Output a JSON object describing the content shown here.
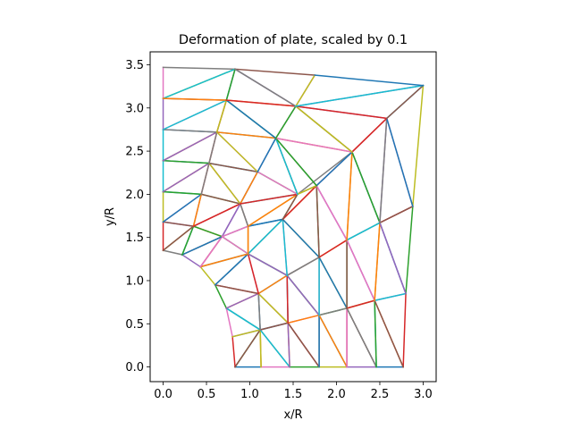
{
  "chart_data": {
    "type": "line",
    "title": "Deformation of plate, scaled by 0.1",
    "xlabel": "x/R",
    "ylabel": "y/R",
    "xlim": [
      -0.15,
      3.15
    ],
    "ylim": [
      -0.17,
      3.65
    ],
    "xticks": [
      0.0,
      0.5,
      1.0,
      1.5,
      2.0,
      2.5,
      3.0
    ],
    "xtick_labels": [
      "0.0",
      "0.5",
      "1.0",
      "1.5",
      "2.0",
      "2.5",
      "3.0"
    ],
    "yticks": [
      0.0,
      0.5,
      1.0,
      1.5,
      2.0,
      2.5,
      3.0,
      3.5
    ],
    "ytick_labels": [
      "0.0",
      "0.5",
      "1.0",
      "1.5",
      "2.0",
      "2.5",
      "3.0",
      "3.5"
    ],
    "grid": false,
    "colors": [
      "#1f77b4",
      "#ff7f0e",
      "#2ca02c",
      "#d62728",
      "#9467bd",
      "#8c564b",
      "#e377c2",
      "#7f7f7f",
      "#bcbd22",
      "#17becf"
    ],
    "nodes": [
      [
        0.83,
        0.0
      ],
      [
        1.13,
        0.0
      ],
      [
        1.46,
        0.0
      ],
      [
        1.8,
        0.0
      ],
      [
        2.12,
        0.0
      ],
      [
        2.46,
        0.0
      ],
      [
        2.77,
        0.0
      ],
      [
        0.8,
        0.35
      ],
      [
        0.73,
        0.68
      ],
      [
        0.6,
        0.95
      ],
      [
        0.43,
        1.16
      ],
      [
        0.22,
        1.3
      ],
      [
        0.0,
        1.35
      ],
      [
        0.0,
        1.68
      ],
      [
        0.0,
        2.03
      ],
      [
        0.0,
        2.39
      ],
      [
        0.0,
        2.75
      ],
      [
        0.0,
        3.11
      ],
      [
        0.0,
        3.47
      ],
      [
        0.83,
        3.45
      ],
      [
        1.75,
        3.38
      ],
      [
        3.0,
        3.26
      ],
      [
        2.88,
        1.86
      ],
      [
        2.8,
        0.85
      ],
      [
        1.12,
        0.43
      ],
      [
        1.44,
        0.51
      ],
      [
        1.8,
        0.6
      ],
      [
        2.12,
        0.68
      ],
      [
        2.44,
        0.77
      ],
      [
        1.1,
        0.85
      ],
      [
        1.43,
        1.06
      ],
      [
        1.8,
        1.27
      ],
      [
        2.12,
        1.47
      ],
      [
        2.5,
        1.67
      ],
      [
        0.98,
        1.31
      ],
      [
        1.38,
        1.71
      ],
      [
        1.77,
        2.1
      ],
      [
        2.18,
        2.49
      ],
      [
        2.58,
        2.88
      ],
      [
        0.68,
        1.51
      ],
      [
        0.35,
        1.63
      ],
      [
        0.44,
        2.0
      ],
      [
        0.89,
        1.89
      ],
      [
        0.53,
        2.36
      ],
      [
        1.09,
        2.26
      ],
      [
        0.62,
        2.72
      ],
      [
        1.3,
        2.65
      ],
      [
        0.73,
        3.09
      ],
      [
        1.53,
        3.02
      ],
      [
        0.98,
        1.63
      ],
      [
        1.55,
        2.0
      ]
    ],
    "elements": [
      [
        0,
        1,
        24
      ],
      [
        0,
        7,
        24
      ],
      [
        1,
        2,
        24
      ],
      [
        2,
        24,
        25
      ],
      [
        2,
        3,
        25
      ],
      [
        3,
        25,
        26
      ],
      [
        3,
        4,
        26
      ],
      [
        4,
        26,
        27
      ],
      [
        4,
        5,
        27
      ],
      [
        5,
        27,
        28
      ],
      [
        5,
        6,
        28
      ],
      [
        6,
        23,
        28
      ],
      [
        7,
        8,
        24
      ],
      [
        8,
        24,
        29
      ],
      [
        8,
        9,
        29
      ],
      [
        24,
        25,
        29
      ],
      [
        25,
        29,
        30
      ],
      [
        25,
        26,
        30
      ],
      [
        26,
        30,
        31
      ],
      [
        26,
        27,
        31
      ],
      [
        27,
        31,
        32
      ],
      [
        27,
        28,
        32
      ],
      [
        28,
        32,
        33
      ],
      [
        28,
        23,
        33
      ],
      [
        23,
        22,
        33
      ],
      [
        9,
        29,
        34
      ],
      [
        9,
        10,
        34
      ],
      [
        29,
        30,
        34
      ],
      [
        30,
        34,
        35
      ],
      [
        30,
        31,
        35
      ],
      [
        31,
        35,
        36
      ],
      [
        31,
        32,
        36
      ],
      [
        32,
        36,
        37
      ],
      [
        32,
        33,
        37
      ],
      [
        33,
        37,
        38
      ],
      [
        33,
        22,
        38
      ],
      [
        22,
        21,
        38
      ],
      [
        10,
        34,
        39
      ],
      [
        10,
        11,
        39
      ],
      [
        11,
        12,
        40
      ],
      [
        11,
        39,
        40
      ],
      [
        12,
        13,
        40
      ],
      [
        34,
        39,
        49
      ],
      [
        34,
        35,
        49
      ],
      [
        39,
        40,
        42
      ],
      [
        40,
        13,
        41
      ],
      [
        13,
        14,
        41
      ],
      [
        40,
        41,
        42
      ],
      [
        39,
        42,
        49
      ],
      [
        42,
        49,
        50
      ],
      [
        35,
        49,
        50
      ],
      [
        35,
        36,
        50
      ],
      [
        36,
        37,
        50
      ],
      [
        14,
        15,
        43
      ],
      [
        14,
        41,
        43
      ],
      [
        41,
        42,
        43
      ],
      [
        42,
        43,
        44
      ],
      [
        42,
        44,
        50
      ],
      [
        44,
        46,
        50
      ],
      [
        46,
        36,
        50
      ],
      [
        36,
        37,
        46
      ],
      [
        37,
        38,
        48
      ],
      [
        37,
        46,
        48
      ],
      [
        15,
        16,
        45
      ],
      [
        15,
        43,
        45
      ],
      [
        43,
        44,
        45
      ],
      [
        44,
        45,
        46
      ],
      [
        45,
        46,
        47
      ],
      [
        16,
        17,
        47
      ],
      [
        16,
        45,
        47
      ],
      [
        46,
        47,
        48
      ],
      [
        38,
        48,
        21
      ],
      [
        17,
        18,
        19
      ],
      [
        17,
        19,
        47
      ],
      [
        19,
        47,
        48
      ],
      [
        19,
        20,
        48
      ],
      [
        20,
        48,
        21
      ]
    ]
  }
}
